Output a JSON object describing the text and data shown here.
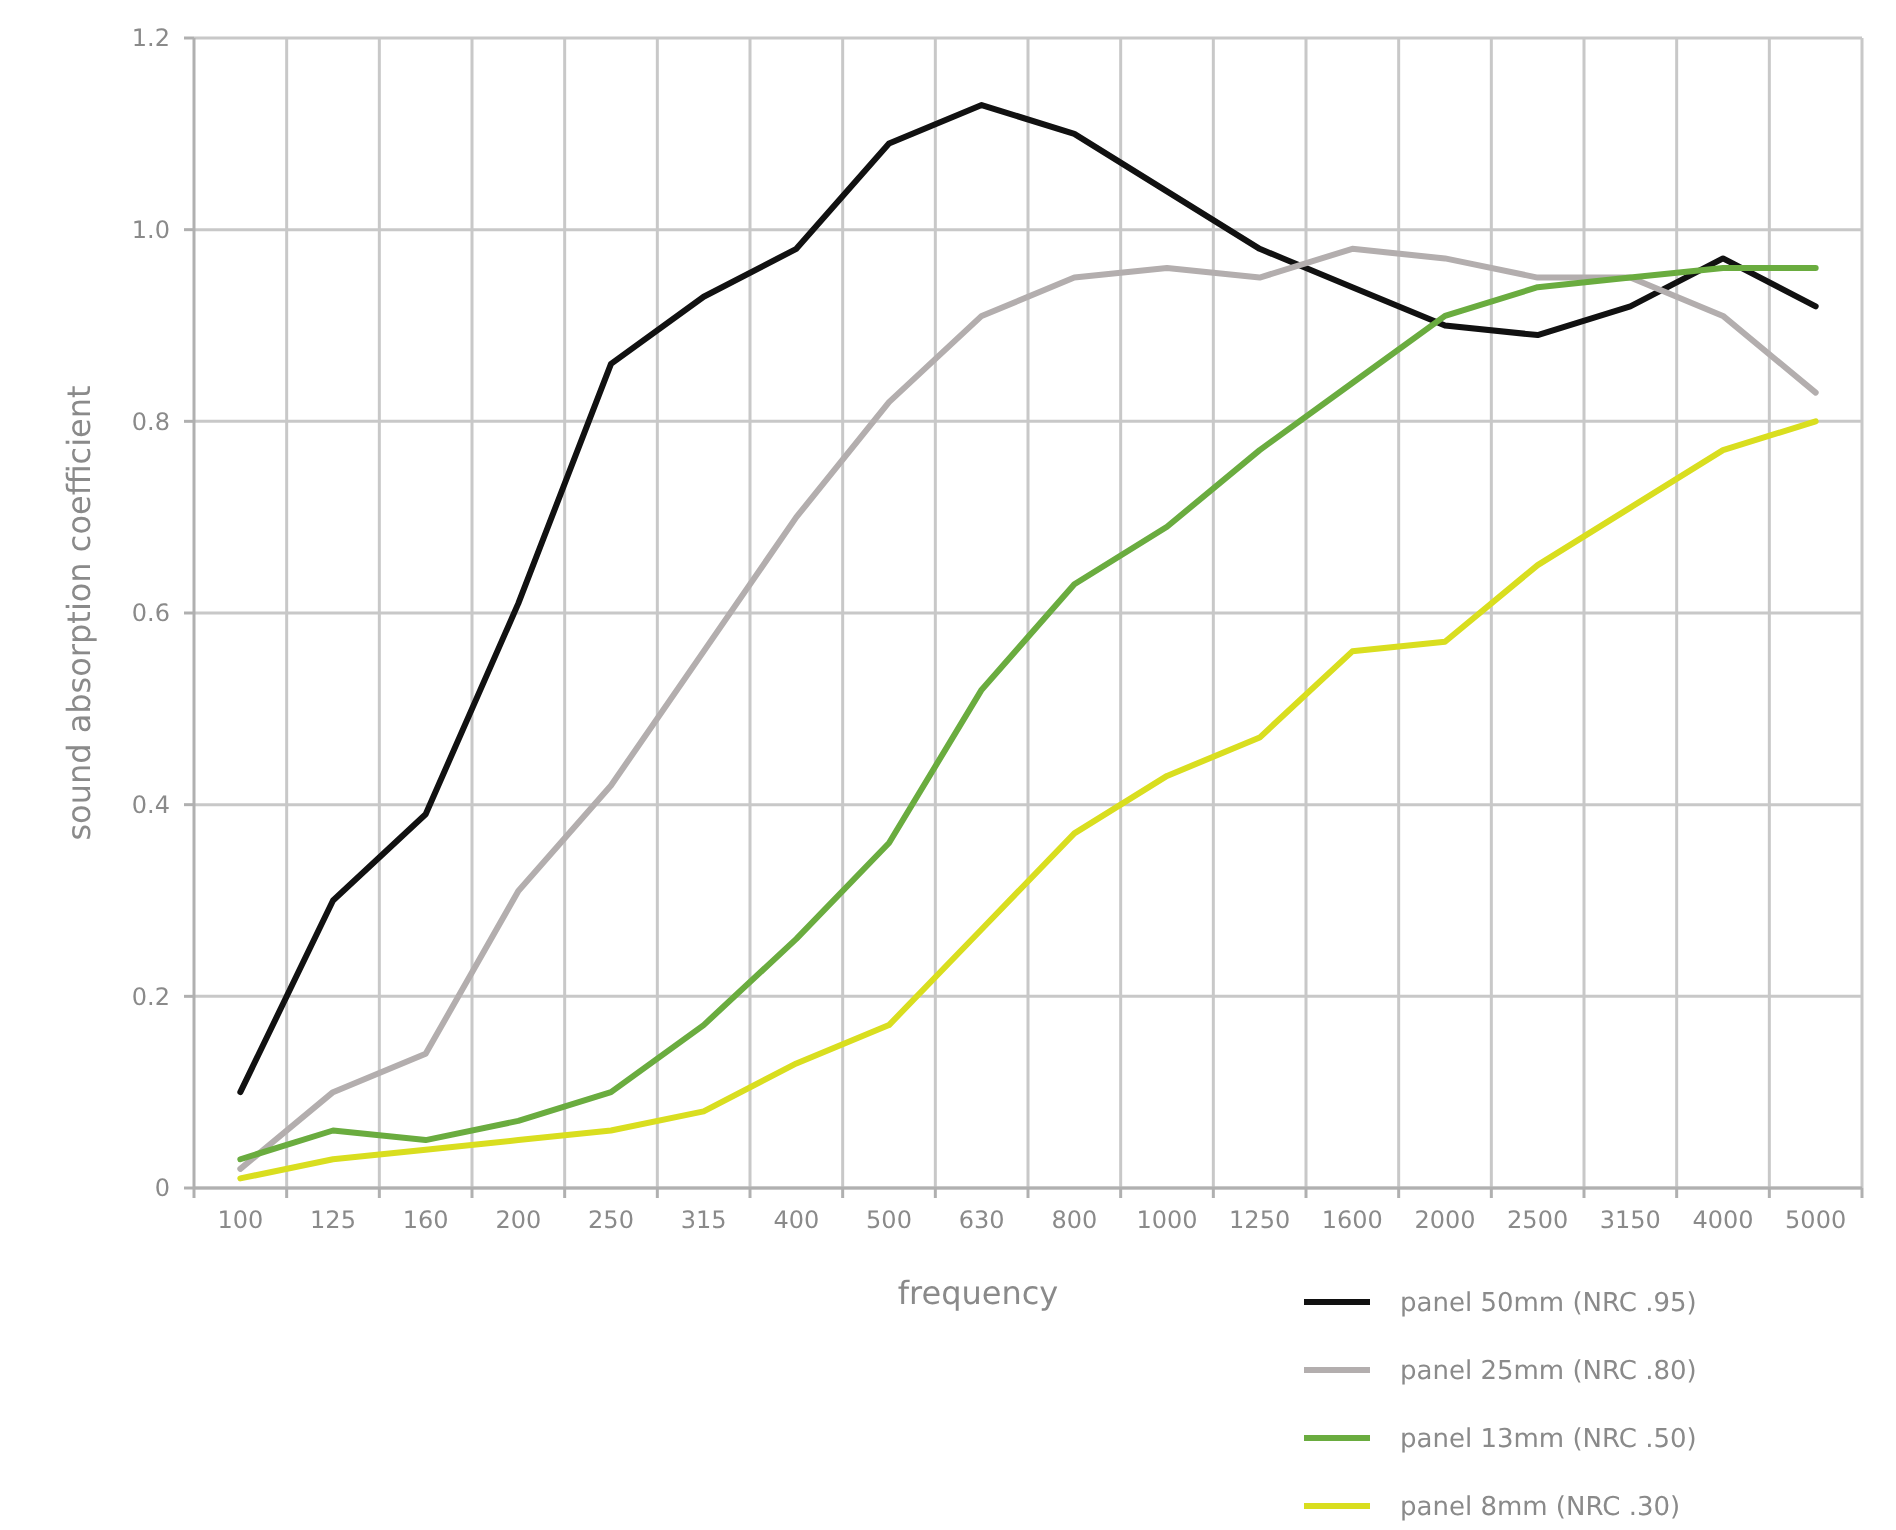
{
  "chart_data": {
    "type": "line",
    "xlabel": "frequency",
    "ylabel": "sound absorption coefficient",
    "categories": [
      "100",
      "125",
      "160",
      "200",
      "250",
      "315",
      "400",
      "500",
      "630",
      "800",
      "1000",
      "1250",
      "1600",
      "2000",
      "2500",
      "3150",
      "4000",
      "5000"
    ],
    "series": [
      {
        "name": "panel 50mm (NRC .95)",
        "color": "#111111",
        "values": [
          0.1,
          0.3,
          0.39,
          0.61,
          0.86,
          0.93,
          0.98,
          1.09,
          1.13,
          1.1,
          1.04,
          0.98,
          0.94,
          0.9,
          0.89,
          0.92,
          0.97,
          0.92
        ]
      },
      {
        "name": "panel 25mm (NRC .80)",
        "color": "#b3aeae",
        "values": [
          0.02,
          0.1,
          0.14,
          0.31,
          0.42,
          0.56,
          0.7,
          0.82,
          0.91,
          0.95,
          0.96,
          0.95,
          0.98,
          0.97,
          0.95,
          0.95,
          0.91,
          0.83
        ]
      },
      {
        "name": "panel 13mm (NRC .50)",
        "color": "#6aac3f",
        "values": [
          0.03,
          0.06,
          0.05,
          0.07,
          0.1,
          0.17,
          0.26,
          0.36,
          0.52,
          0.63,
          0.69,
          0.77,
          0.84,
          0.91,
          0.94,
          0.95,
          0.96,
          0.96
        ]
      },
      {
        "name": "panel 8mm (NRC .30)",
        "color": "#d9de1f",
        "values": [
          0.01,
          0.03,
          0.04,
          0.05,
          0.06,
          0.08,
          0.13,
          0.17,
          0.27,
          0.37,
          0.43,
          0.47,
          0.56,
          0.57,
          0.65,
          0.71,
          0.77,
          0.8
        ]
      }
    ],
    "ylim": [
      0,
      1.2
    ],
    "yticks": [
      0,
      {
        "value": 0.2,
        "label": "0.2"
      },
      {
        "value": 0.4,
        "label": "0.4"
      },
      {
        "value": 0.6,
        "label": "0.6"
      },
      {
        "value": 0.8,
        "label": "0.8"
      },
      {
        "value": 1,
        "label": "1.0"
      },
      {
        "value": 1.2,
        "label": "1.2"
      }
    ],
    "grid": true,
    "legend": "bottom right",
    "marker": "none",
    "line_style": "solid"
  }
}
